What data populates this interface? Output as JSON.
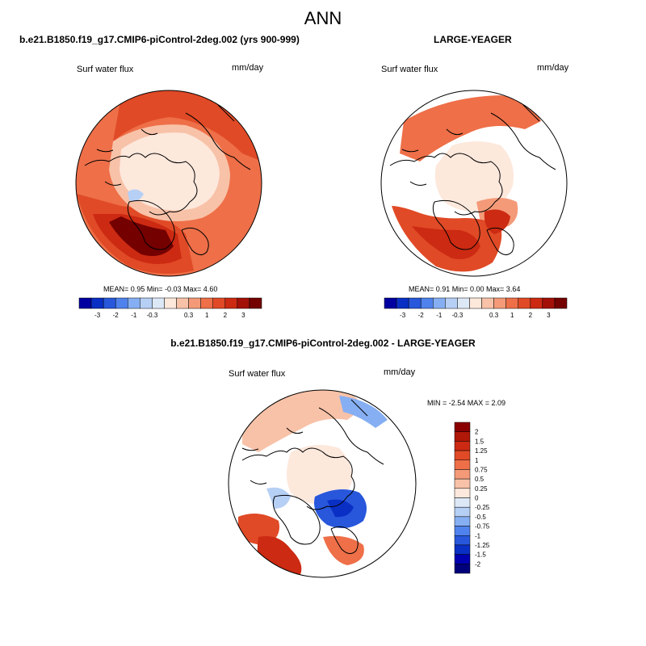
{
  "figure": {
    "title": "ANN",
    "case_name": "b.e21.B1850.f19_g17.CMIP6-piControl-2deg.002 (yrs 900-999)",
    "ref_name": "LARGE-YEAGER",
    "diff_name": "b.e21.B1850.f19_g17.CMIP6-piControl-2deg.002 - LARGE-YEAGER"
  },
  "panels": {
    "case": {
      "variable": "Surf water flux",
      "units": "mm/day",
      "stats_text": "MEAN=   0.95   Min=   -0.03   Max=    4.60"
    },
    "ref": {
      "variable": "Surf water flux",
      "units": "mm/day",
      "stats_text": "MEAN=   0.91   Min=   0.00   Max=    3.64"
    },
    "diff": {
      "variable": "Surf water flux",
      "units": "mm/day",
      "stats_text": "MIN =  -2.54 MAX =   2.09"
    }
  },
  "chart_data": [
    {
      "type": "heatmap",
      "projection": "north polar stereographic",
      "title": "b.e21.B1850.f19_g17.CMIP6-piControl-2deg.002 (yrs 900-999)",
      "variable": "Surf water flux",
      "units": "mm/day",
      "mean": 0.95,
      "min": -0.03,
      "max": 4.6,
      "colorbar": {
        "orientation": "horizontal",
        "tick_labels": [
          "-3",
          "-2",
          "-1",
          "-0.3",
          "0.3",
          "1",
          "2",
          "3"
        ],
        "colors": [
          "#0000a0",
          "#0a2fc4",
          "#2857dc",
          "#4f82ec",
          "#86aff3",
          "#b6cff5",
          "#dde8f7",
          "#fde8dc",
          "#f8c2a8",
          "#f49a78",
          "#ee6f48",
          "#e04a26",
          "#cc2a12",
          "#a31008",
          "#740000"
        ]
      }
    },
    {
      "type": "heatmap",
      "projection": "north polar stereographic",
      "title": "LARGE-YEAGER",
      "variable": "Surf water flux",
      "units": "mm/day",
      "mean": 0.91,
      "min": 0.0,
      "max": 3.64,
      "colorbar": {
        "orientation": "horizontal",
        "tick_labels": [
          "-3",
          "-2",
          "-1",
          "-0.3",
          "0.3",
          "1",
          "2",
          "3"
        ],
        "colors": [
          "#0000a0",
          "#0a2fc4",
          "#2857dc",
          "#4f82ec",
          "#86aff3",
          "#b6cff5",
          "#dde8f7",
          "#fde8dc",
          "#f8c2a8",
          "#f49a78",
          "#ee6f48",
          "#e04a26",
          "#cc2a12",
          "#a31008",
          "#740000"
        ]
      }
    },
    {
      "type": "heatmap",
      "projection": "north polar stereographic",
      "title": "b.e21.B1850.f19_g17.CMIP6-piControl-2deg.002 - LARGE-YEAGER",
      "variable": "Surf water flux",
      "units": "mm/day",
      "min": -2.54,
      "max": 2.09,
      "colorbar": {
        "orientation": "vertical",
        "tick_labels": [
          "2",
          "1.5",
          "1.25",
          "1",
          "0.75",
          "0.5",
          "0.25",
          "0",
          "-0.25",
          "-0.5",
          "-0.75",
          "-1",
          "-1.25",
          "-1.5",
          "-2"
        ],
        "colors": [
          "#8a0000",
          "#b01808",
          "#cc2a12",
          "#e04a26",
          "#ee6f48",
          "#f49a78",
          "#f8c2a8",
          "#fde8dc",
          "#dde8f7",
          "#b6cff5",
          "#86aff3",
          "#4f82ec",
          "#2857dc",
          "#0a2fc4",
          "#0000b0",
          "#00007a"
        ]
      }
    }
  ]
}
